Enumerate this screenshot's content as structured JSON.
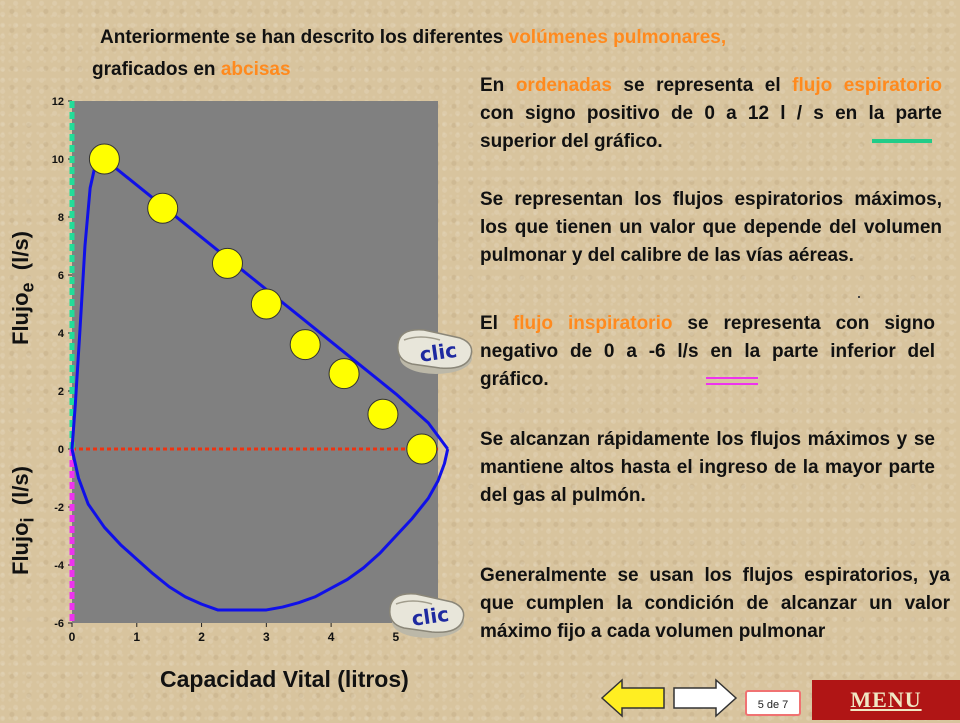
{
  "intro": {
    "line1_a": "Anteriormente se han descrito los diferentes ",
    "line1_b": "volúmenes pulmonares,",
    "line2_a": "graficados en ",
    "line2_b": "abcisas"
  },
  "p1": {
    "a": "En ",
    "b": "ordenadas",
    "c": " se representa el ",
    "d": "flujo espiratorio",
    "e": " con signo positivo de 0 a 12 l / s en la parte superior del gráfico."
  },
  "p2": "Se representan los flujos espiratorios máximos, los que tienen un valor que depende del volumen pulmonar y del calibre de las vías aéreas.",
  "p3": {
    "a": "El ",
    "b": "flujo inspiratorio",
    "c": " se representa con signo negativo de 0 a -6 l/s en la parte inferior del gráfico."
  },
  "p4": "Se alcanzan rápidamente los flujos máximos y se mantiene altos hasta el ingreso de la mayor parte del gas al pulmón.",
  "p5": "Generalmente se usan los flujos espiratorios, ya que cumplen la condición de alcanzar un valor máximo fijo a cada volumen pulmonar",
  "chart_data": {
    "type": "line",
    "xlabel": "Capacidad Vital (litros)",
    "ylabel_expiratory": "Flujo",
    "ylabel_expiratory_sub": "e",
    "ylabel_expiratory_unit": "(l/s)",
    "ylabel_inspiratory": "Flujo",
    "ylabel_inspiratory_sub": "i",
    "ylabel_inspiratory_unit": "(l/s)",
    "xlim": [
      0,
      6
    ],
    "ylim": [
      -6,
      12
    ],
    "x_ticks": [
      "0",
      "1",
      "2",
      "3",
      "4",
      "5"
    ],
    "y_ticks": [
      "12",
      "10",
      "8",
      "6",
      "4",
      "2",
      "0",
      "-2",
      "-4",
      "-6"
    ],
    "colors": {
      "plot_bg": "#808080",
      "curve": "#1010e8",
      "marker": "#ffff00",
      "expiratory_axis": "#22dd99",
      "inspiratory_axis": "#ee33ee",
      "zero_line": "#ee3311"
    },
    "series": [
      {
        "role": "expiratory",
        "x": [
          0,
          0.05,
          0.12,
          0.2,
          0.28,
          0.35,
          0.42,
          0.5,
          1.0,
          1.5,
          2.0,
          2.5,
          3.0,
          3.5,
          4.0,
          4.5,
          5.0,
          5.5,
          5.8
        ],
        "y": [
          0,
          1.5,
          4.0,
          7.0,
          9.0,
          9.7,
          9.95,
          10.0,
          9.1,
          8.2,
          7.3,
          6.4,
          5.5,
          4.6,
          3.7,
          2.8,
          1.9,
          0.9,
          0
        ]
      },
      {
        "role": "inspiratory",
        "x": [
          0,
          0.1,
          0.25,
          0.5,
          0.75,
          1.0,
          1.25,
          1.5,
          1.75,
          2.0,
          2.25,
          2.5,
          2.75,
          3.0,
          3.25,
          3.5,
          3.75,
          4.0,
          4.25,
          4.5,
          4.75,
          5.0,
          5.25,
          5.5,
          5.65,
          5.75,
          5.8
        ],
        "y": [
          0,
          -1.0,
          -1.9,
          -2.7,
          -3.3,
          -3.8,
          -4.3,
          -4.75,
          -5.1,
          -5.35,
          -5.55,
          -5.55,
          -5.55,
          -5.55,
          -5.45,
          -5.3,
          -5.1,
          -4.8,
          -4.5,
          -4.1,
          -3.6,
          -3.0,
          -2.4,
          -1.7,
          -1.1,
          -0.5,
          0
        ]
      }
    ],
    "markers": {
      "x": [
        0.5,
        1.4,
        2.4,
        3.0,
        3.6,
        4.2,
        4.8,
        5.4
      ],
      "y": [
        10.0,
        8.3,
        6.4,
        5.0,
        3.6,
        2.6,
        1.2,
        0.0
      ]
    }
  },
  "buttons": {
    "clic_top": "clic",
    "clic_bottom": "clic",
    "menu": "MENU"
  },
  "page_indicator": "5 de 7"
}
